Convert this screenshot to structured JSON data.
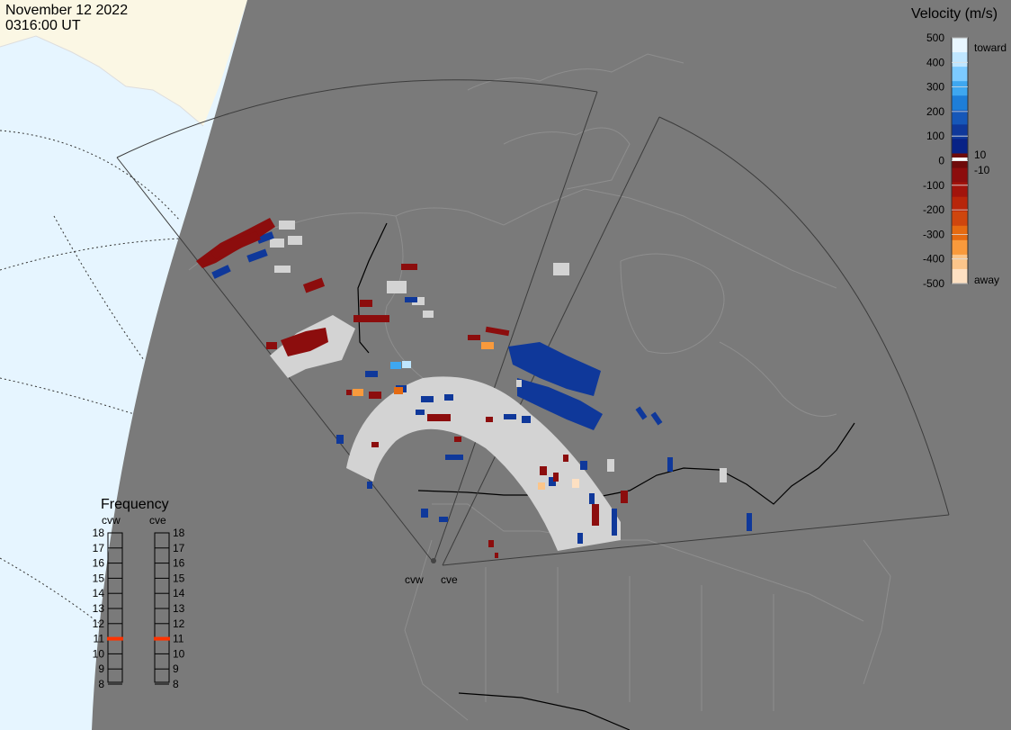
{
  "header": {
    "date": "November 12 2022",
    "time": "0316:00 UT"
  },
  "colors": {
    "earth_dark": "#7a7a7a",
    "ocean": "#e6f5ff",
    "land_light": "#fbf7e4",
    "ground_scatter": "#d3d3d3"
  },
  "velocity_scale": {
    "title": "Velocity (m/s)",
    "ticks": [
      "500",
      "400",
      "300",
      "200",
      "100",
      "0",
      "-100",
      "-200",
      "-300",
      "-400",
      "-500"
    ],
    "label_toward": "toward",
    "label_away": "away",
    "threshold_pos": "10",
    "threshold_neg": "-10",
    "colors_top_to_bottom": [
      "#e8f6ff",
      "#bfe6ff",
      "#7ccaff",
      "#3ea7f0",
      "#1e7ed8",
      "#1657b8",
      "#0f389a",
      "#082286",
      "#6e0a0a",
      "#8c0d0d",
      "#a2140c",
      "#b8260b",
      "#cf460e",
      "#e56b12",
      "#f99a3c",
      "#fbc58a",
      "#fde0c2"
    ]
  },
  "frequency": {
    "title": "Frequency",
    "radar_west": "cvw",
    "radar_east": "cve",
    "ticks": [
      "18",
      "17",
      "16",
      "15",
      "14",
      "13",
      "12",
      "11",
      "10",
      "9",
      "8"
    ],
    "current_mhz_west": 11,
    "current_mhz_east": 11,
    "marker_color": "#ff3300"
  },
  "radars": {
    "west": "cvw",
    "east": "cve"
  }
}
